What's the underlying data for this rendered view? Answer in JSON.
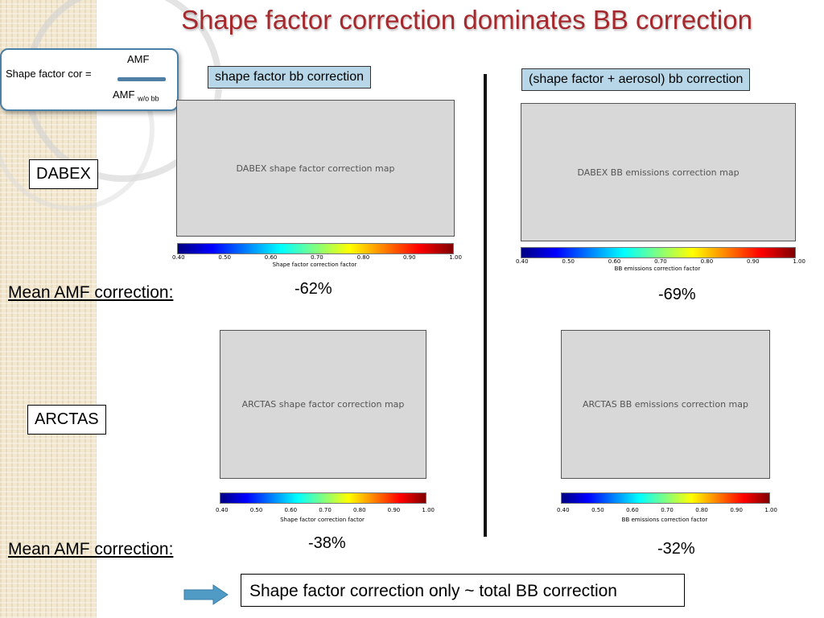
{
  "title": "Shape factor correction dominates BB correction",
  "formula": {
    "lhs": "Shape factor cor =",
    "numerator": "AMF",
    "denominator": "AMF",
    "denominator_sub": "w/o bb"
  },
  "tags": {
    "left": "shape factor bb correction",
    "right": "(shape factor + aerosol) bb correction"
  },
  "campaigns": {
    "dabex": "DABEX",
    "arctas": "ARCTAS"
  },
  "mean_label": "Mean AMF correction:",
  "values": {
    "dabex_left": "-62%",
    "dabex_right": "-69%",
    "arctas_left": "-38%",
    "arctas_right": "-32%"
  },
  "colorbar_ticks": [
    "0.40",
    "0.50",
    "0.60",
    "0.70",
    "0.80",
    "0.90",
    "1.00"
  ],
  "colorbar_labels": {
    "shape": "Shape factor correction factor",
    "bb": "BB emissions correction factor"
  },
  "maps": {
    "dabex_left": "DABEX shape factor correction map",
    "dabex_right": "DABEX BB emissions correction map",
    "arctas_left": "ARCTAS shape factor correction map",
    "arctas_right": "ARCTAS BB emissions correction map"
  },
  "conclusion": "Shape factor correction only ~ total BB correction"
}
